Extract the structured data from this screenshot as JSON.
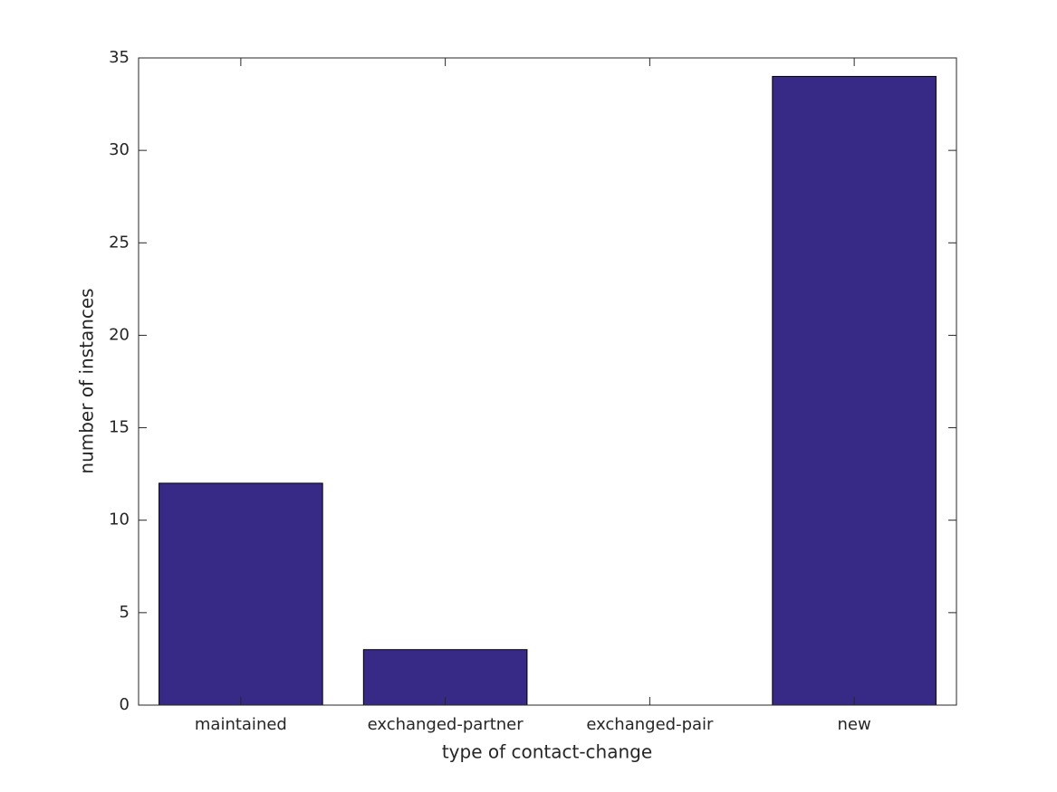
{
  "chart_data": {
    "type": "bar",
    "xlabel": "type of contact-change",
    "ylabel": "number of instances",
    "categories": [
      "maintained",
      "exchanged-partner",
      "exchanged-pair",
      "new"
    ],
    "values": [
      12,
      3,
      0,
      34
    ],
    "color": "#372a87",
    "ylim": [
      0,
      35
    ],
    "yticks": [
      0,
      5,
      10,
      15,
      20,
      25,
      30,
      35
    ],
    "grid": false
  }
}
